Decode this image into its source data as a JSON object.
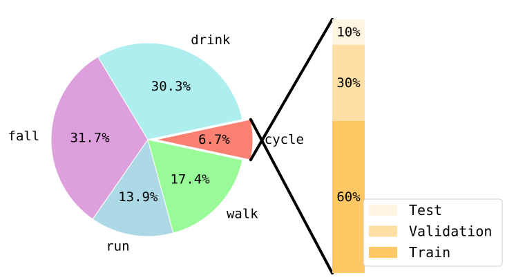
{
  "chart_data": [
    {
      "type": "pie",
      "slices": [
        {
          "label": "cycle",
          "value": 6.7,
          "value_label": "6.7%",
          "color": "#fa8072",
          "exploded": true
        },
        {
          "label": "drink",
          "value": 30.3,
          "value_label": "30.3%",
          "color": "#afeeee"
        },
        {
          "label": "fall",
          "value": 31.7,
          "value_label": "31.7%",
          "color": "#dda0dd"
        },
        {
          "label": "run",
          "value": 13.9,
          "value_label": "13.9%",
          "color": "#add8e6"
        },
        {
          "label": "walk",
          "value": 17.4,
          "value_label": "17.4%",
          "color": "#98fb98"
        }
      ]
    },
    {
      "type": "bar",
      "stacked": true,
      "series": [
        {
          "name": "Train",
          "value": 60,
          "value_label": "60%",
          "color": "#ffc864"
        },
        {
          "name": "Validation",
          "value": 30,
          "value_label": "30%",
          "color": "#ffdfa3"
        },
        {
          "name": "Test",
          "value": 10,
          "value_label": "10%",
          "color": "#fff5e1"
        }
      ],
      "legend": {
        "placement": "lower-right",
        "order": [
          "Test",
          "Validation",
          "Train"
        ]
      },
      "connector_color": "#000000"
    }
  ]
}
